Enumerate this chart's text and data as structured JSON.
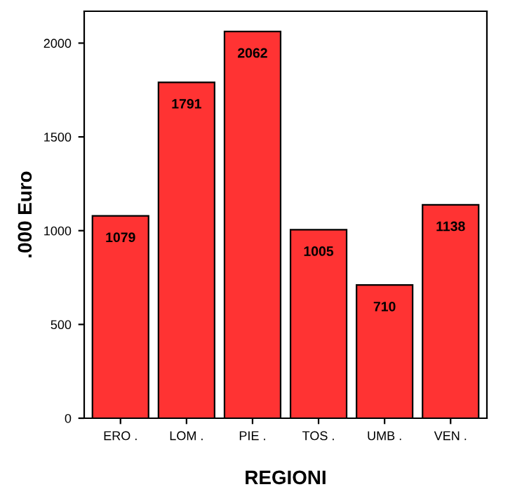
{
  "chart_data": {
    "type": "bar",
    "xlabel": "REGIONI",
    "ylabel": ".000 Euro",
    "categories": [
      "ERO .",
      "LOM .",
      "PIE .",
      "TOS .",
      "UMB .",
      "VEN ."
    ],
    "values": [
      1079,
      1791,
      2062,
      1005,
      710,
      1138
    ],
    "color": "#ff3333",
    "data_labels": true,
    "ylim": [
      0,
      2170
    ],
    "yticks": [
      0,
      500,
      1000,
      1500,
      2000
    ],
    "grid": false,
    "legend": false
  }
}
